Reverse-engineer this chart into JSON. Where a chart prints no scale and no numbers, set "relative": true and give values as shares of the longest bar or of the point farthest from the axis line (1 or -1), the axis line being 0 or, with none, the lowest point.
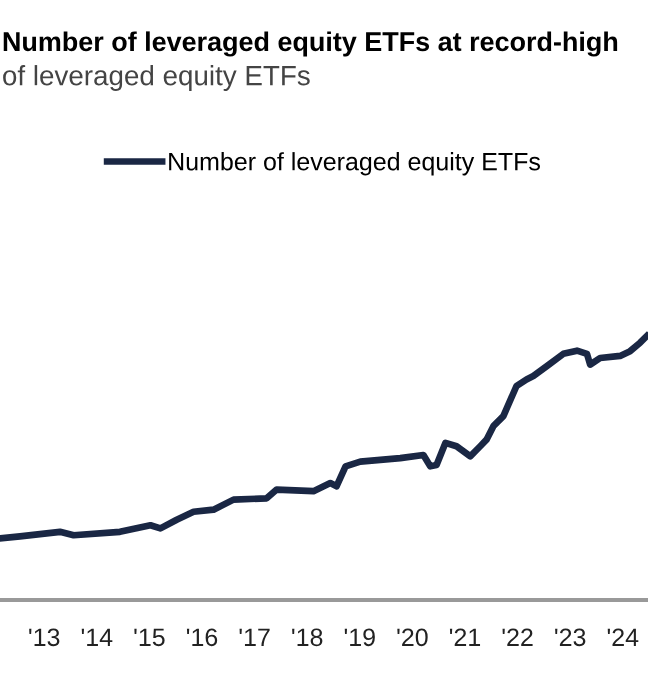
{
  "chart_data": {
    "type": "line",
    "title": "Number of leveraged equity ETFs at record-high",
    "subtitle": "of leveraged equity ETFs",
    "relative": true,
    "legend": "top",
    "marker": "none",
    "line_style": "solid",
    "grid": false,
    "xlim": [
      2012.16,
      2024.48
    ],
    "xticks": [
      {
        "value": 2013,
        "label": "'13"
      },
      {
        "value": 2014,
        "label": "'14"
      },
      {
        "value": 2015,
        "label": "'15"
      },
      {
        "value": 2016,
        "label": "'16"
      },
      {
        "value": 2017,
        "label": "'17"
      },
      {
        "value": 2018,
        "label": "'18"
      },
      {
        "value": 2019,
        "label": "'19"
      },
      {
        "value": 2020,
        "label": "'20"
      },
      {
        "value": 2021,
        "label": "'21"
      },
      {
        "value": 2022,
        "label": "'22"
      },
      {
        "value": 2023,
        "label": "'23"
      },
      {
        "value": 2024,
        "label": "'24"
      }
    ],
    "series": [
      {
        "name": "Number of leveraged equity ETFs",
        "color": "#1a2744",
        "x": [
          2012.16,
          2012.54,
          2013.3,
          2013.56,
          2014.44,
          2015.02,
          2015.21,
          2015.52,
          2015.84,
          2016.22,
          2016.6,
          2017.23,
          2017.42,
          2018.12,
          2018.44,
          2018.56,
          2018.73,
          2019.01,
          2019.77,
          2020.21,
          2020.34,
          2020.46,
          2020.63,
          2020.84,
          2021.1,
          2021.29,
          2021.41,
          2021.54,
          2021.73,
          2021.98,
          2022.17,
          2022.3,
          2022.56,
          2022.87,
          2023.13,
          2023.32,
          2023.38,
          2023.57,
          2023.95,
          2024.14,
          2024.33,
          2024.46
        ],
        "values": [
          0.233,
          0.241,
          0.258,
          0.245,
          0.258,
          0.283,
          0.271,
          0.304,
          0.334,
          0.342,
          0.38,
          0.385,
          0.418,
          0.412,
          0.443,
          0.431,
          0.506,
          0.524,
          0.537,
          0.549,
          0.506,
          0.511,
          0.595,
          0.582,
          0.544,
          0.582,
          0.607,
          0.658,
          0.696,
          0.81,
          0.835,
          0.848,
          0.886,
          0.932,
          0.944,
          0.932,
          0.891,
          0.916,
          0.924,
          0.942,
          0.974,
          1.0
        ]
      }
    ]
  }
}
